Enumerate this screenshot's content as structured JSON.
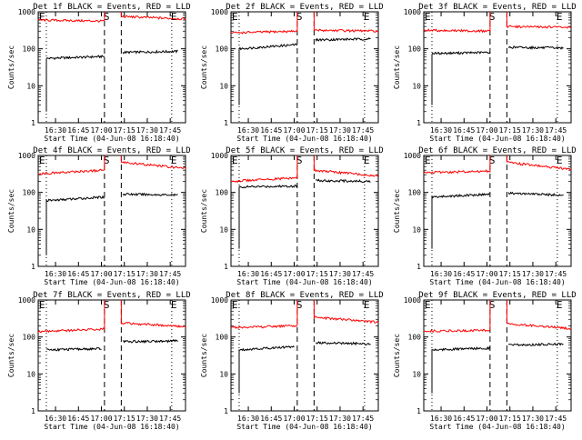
{
  "figure": {
    "ylabel": "Counts/sec",
    "xlabel": "Start Time (04-Jun-08 16:18:40)",
    "y_ticks": [
      "1",
      "10",
      "100",
      "1000"
    ],
    "x_ticks": [
      "16:30",
      "16:45",
      "17:00",
      "17:15",
      "17:30",
      "17:45"
    ],
    "marker_s": "S",
    "marker_e": "E",
    "colors": {
      "events": "#000000",
      "lld": "#ff0000",
      "axes": "#000000",
      "background": "#ffffff"
    }
  },
  "chart_data": [
    {
      "type": "line",
      "title": "Det 1f BLACK = Events, RED = LLD",
      "yscale": "log",
      "ylim": [
        1,
        1000
      ],
      "xlim": [
        "16:18:40",
        "17:55:00"
      ],
      "ylabel": "Counts/sec",
      "xlabel": "Start Time (04-Jun-08 16:18:40)",
      "dashed_x": [
        "17:02",
        "17:13"
      ],
      "dotted_x": [
        "16:24",
        "17:46"
      ],
      "series": [
        {
          "name": "Events",
          "color": "#000000",
          "segments": [
            {
              "t0": "16:24",
              "t1": "17:02",
              "v0": 55,
              "v1": 62,
              "start_drop": 2
            },
            {
              "t0": "17:14",
              "t1": "17:50",
              "v0": 80,
              "v1": 85
            }
          ]
        },
        {
          "name": "LLD",
          "color": "#ff0000",
          "segments": [
            {
              "t0": "16:18:40",
              "t1": "17:02",
              "v0": 600,
              "v1": 560,
              "rise_to": 1000
            },
            {
              "t0": "17:13",
              "t1": "17:55",
              "v0": 750,
              "v1": 640,
              "start_from": 1000
            }
          ]
        }
      ]
    },
    {
      "type": "line",
      "title": "Det 2f BLACK = Events, RED = LLD",
      "yscale": "log",
      "ylim": [
        1,
        1000
      ],
      "xlim": [
        "16:18:40",
        "17:55:00"
      ],
      "ylabel": "Counts/sec",
      "xlabel": "Start Time (04-Jun-08 16:18:40)",
      "dashed_x": [
        "17:02",
        "17:13"
      ],
      "dotted_x": [
        "16:24",
        "17:46"
      ],
      "series": [
        {
          "name": "Events",
          "color": "#000000",
          "segments": [
            {
              "t0": "16:24",
              "t1": "17:02",
              "v0": 100,
              "v1": 130,
              "start_drop": 3
            },
            {
              "t0": "17:14",
              "t1": "17:50",
              "v0": 175,
              "v1": 185
            }
          ]
        },
        {
          "name": "LLD",
          "color": "#ff0000",
          "segments": [
            {
              "t0": "16:18:40",
              "t1": "17:02",
              "v0": 270,
              "v1": 300,
              "rise_to": 1000
            },
            {
              "t0": "17:13",
              "t1": "17:55",
              "v0": 320,
              "v1": 300,
              "start_from": 1000
            }
          ]
        }
      ]
    },
    {
      "type": "line",
      "title": "Det 3f BLACK = Events, RED = LLD",
      "yscale": "log",
      "ylim": [
        1,
        1000
      ],
      "xlim": [
        "16:18:40",
        "17:55:00"
      ],
      "ylabel": "Counts/sec",
      "xlabel": "Start Time (04-Jun-08 16:18:40)",
      "dashed_x": [
        "17:02",
        "17:13"
      ],
      "dotted_x": [
        "16:24",
        "17:46"
      ],
      "series": [
        {
          "name": "Events",
          "color": "#000000",
          "segments": [
            {
              "t0": "16:24",
              "t1": "17:02",
              "v0": 75,
              "v1": 80,
              "start_drop": 3
            },
            {
              "t0": "17:14",
              "t1": "17:50",
              "v0": 110,
              "v1": 105
            }
          ]
        },
        {
          "name": "LLD",
          "color": "#ff0000",
          "segments": [
            {
              "t0": "16:18:40",
              "t1": "17:02",
              "v0": 320,
              "v1": 300,
              "rise_to": 1000
            },
            {
              "t0": "17:13",
              "t1": "17:55",
              "v0": 400,
              "v1": 380,
              "start_from": 1000
            }
          ]
        }
      ]
    },
    {
      "type": "line",
      "title": "Det 4f BLACK = Events, RED = LLD",
      "yscale": "log",
      "ylim": [
        1,
        1000
      ],
      "xlim": [
        "16:18:40",
        "17:55:00"
      ],
      "ylabel": "Counts/sec",
      "xlabel": "Start Time (04-Jun-08 16:18:40)",
      "dashed_x": [
        "17:02",
        "17:13"
      ],
      "dotted_x": [
        "16:24",
        "17:46"
      ],
      "series": [
        {
          "name": "Events",
          "color": "#000000",
          "segments": [
            {
              "t0": "16:24",
              "t1": "17:02",
              "v0": 60,
              "v1": 75,
              "start_drop": 2
            },
            {
              "t0": "17:14",
              "t1": "17:50",
              "v0": 90,
              "v1": 85
            }
          ]
        },
        {
          "name": "LLD",
          "color": "#ff0000",
          "segments": [
            {
              "t0": "16:18:40",
              "t1": "17:02",
              "v0": 320,
              "v1": 400,
              "rise_to": 1000
            },
            {
              "t0": "17:13",
              "t1": "17:55",
              "v0": 650,
              "v1": 450,
              "start_from": 1000
            }
          ]
        }
      ]
    },
    {
      "type": "line",
      "title": "Det 5f BLACK = Events, RED = LLD",
      "yscale": "log",
      "ylim": [
        1,
        1000
      ],
      "xlim": [
        "16:18:40",
        "17:55:00"
      ],
      "ylabel": "Counts/sec",
      "xlabel": "Start Time (04-Jun-08 16:18:40)",
      "dashed_x": [
        "17:02",
        "17:13"
      ],
      "dotted_x": [
        "16:24",
        "17:46"
      ],
      "series": [
        {
          "name": "Events",
          "color": "#000000",
          "segments": [
            {
              "t0": "16:24",
              "t1": "17:02",
              "v0": 140,
              "v1": 150,
              "start_drop": 3
            },
            {
              "t0": "17:14",
              "t1": "17:50",
              "v0": 210,
              "v1": 200
            }
          ]
        },
        {
          "name": "LLD",
          "color": "#ff0000",
          "segments": [
            {
              "t0": "16:18:40",
              "t1": "17:02",
              "v0": 200,
              "v1": 250,
              "rise_to": 1000
            },
            {
              "t0": "17:13",
              "t1": "17:55",
              "v0": 400,
              "v1": 280,
              "start_from": 1000
            }
          ]
        }
      ]
    },
    {
      "type": "line",
      "title": "Det 6f BLACK = Events, RED = LLD",
      "yscale": "log",
      "ylim": [
        1,
        1000
      ],
      "xlim": [
        "16:18:40",
        "17:55:00"
      ],
      "ylabel": "Counts/sec",
      "xlabel": "Start Time (04-Jun-08 16:18:40)",
      "dashed_x": [
        "17:02",
        "17:13"
      ],
      "dotted_x": [
        "16:24",
        "17:46"
      ],
      "series": [
        {
          "name": "Events",
          "color": "#000000",
          "segments": [
            {
              "t0": "16:24",
              "t1": "17:02",
              "v0": 75,
              "v1": 90,
              "start_drop": 3
            },
            {
              "t0": "17:14",
              "t1": "17:50",
              "v0": 95,
              "v1": 85
            }
          ]
        },
        {
          "name": "LLD",
          "color": "#ff0000",
          "segments": [
            {
              "t0": "16:18:40",
              "t1": "17:02",
              "v0": 340,
              "v1": 380,
              "rise_to": 1000
            },
            {
              "t0": "17:13",
              "t1": "17:55",
              "v0": 650,
              "v1": 420,
              "start_from": 1000
            }
          ]
        }
      ]
    },
    {
      "type": "line",
      "title": "Det 7f BLACK = Events, RED = LLD",
      "yscale": "log",
      "ylim": [
        1,
        1000
      ],
      "xlim": [
        "16:18:40",
        "17:55:00"
      ],
      "ylabel": "Counts/sec",
      "xlabel": "Start Time (04-Jun-08 16:18:40)",
      "dashed_x": [
        "17:02",
        "17:13"
      ],
      "dotted_x": [
        "16:24",
        "17:46"
      ],
      "series": [
        {
          "name": "Events",
          "color": "#000000",
          "segments": [
            {
              "t0": "16:24",
              "t1": "17:00",
              "v0": 45,
              "v1": 48
            },
            {
              "t0": "17:14",
              "t1": "17:50",
              "v0": 75,
              "v1": 78
            }
          ]
        },
        {
          "name": "LLD",
          "color": "#ff0000",
          "segments": [
            {
              "t0": "16:18:40",
              "t1": "17:02",
              "v0": 140,
              "v1": 165,
              "rise_to": 1000
            },
            {
              "t0": "17:13",
              "t1": "17:55",
              "v0": 240,
              "v1": 190,
              "start_from": 1000
            }
          ]
        }
      ]
    },
    {
      "type": "line",
      "title": "Det 8f BLACK = Events, RED = LLD",
      "yscale": "log",
      "ylim": [
        1,
        1000
      ],
      "xlim": [
        "16:18:40",
        "17:55:00"
      ],
      "ylabel": "Counts/sec",
      "xlabel": "Start Time (04-Jun-08 16:18:40)",
      "dashed_x": [
        "17:02",
        "17:13"
      ],
      "dotted_x": [
        "16:24",
        "17:46"
      ],
      "series": [
        {
          "name": "Events",
          "color": "#000000",
          "segments": [
            {
              "t0": "16:24",
              "t1": "17:00",
              "v0": 45,
              "v1": 55,
              "start_drop": 3
            },
            {
              "t0": "17:14",
              "t1": "17:50",
              "v0": 70,
              "v1": 65
            }
          ]
        },
        {
          "name": "LLD",
          "color": "#ff0000",
          "segments": [
            {
              "t0": "16:18:40",
              "t1": "17:02",
              "v0": 180,
              "v1": 200,
              "rise_to": 1000
            },
            {
              "t0": "17:13",
              "t1": "17:55",
              "v0": 340,
              "v1": 250,
              "start_from": 1000
            }
          ]
        }
      ]
    },
    {
      "type": "line",
      "title": "Det 9f BLACK = Events, RED = LLD",
      "yscale": "log",
      "ylim": [
        1,
        1000
      ],
      "xlim": [
        "16:18:40",
        "17:55:00"
      ],
      "ylabel": "Counts/sec",
      "xlabel": "Start Time (04-Jun-08 16:18:40)",
      "dashed_x": [
        "17:02",
        "17:13"
      ],
      "dotted_x": [
        "16:24",
        "17:46"
      ],
      "series": [
        {
          "name": "Events",
          "color": "#000000",
          "segments": [
            {
              "t0": "16:24",
              "t1": "17:02",
              "v0": 45,
              "v1": 50,
              "start_drop": 3
            },
            {
              "t0": "17:14",
              "t1": "17:50",
              "v0": 60,
              "v1": 65
            }
          ]
        },
        {
          "name": "LLD",
          "color": "#ff0000",
          "segments": [
            {
              "t0": "16:18:40",
              "t1": "17:02",
              "v0": 145,
              "v1": 150,
              "rise_to": 1000
            },
            {
              "t0": "17:13",
              "t1": "17:55",
              "v0": 230,
              "v1": 170,
              "start_from": 1000
            }
          ]
        }
      ]
    }
  ]
}
